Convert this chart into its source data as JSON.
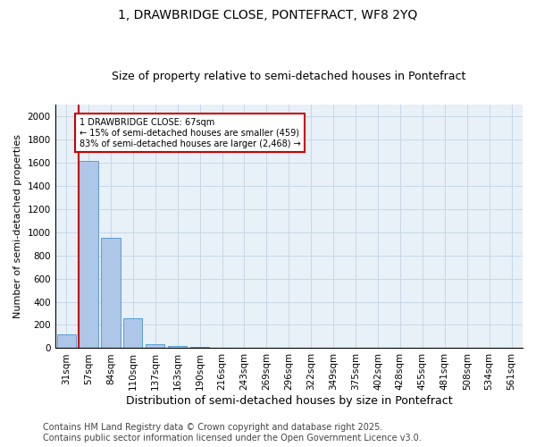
{
  "title1": "1, DRAWBRIDGE CLOSE, PONTEFRACT, WF8 2YQ",
  "title2": "Size of property relative to semi-detached houses in Pontefract",
  "xlabel": "Distribution of semi-detached houses by size in Pontefract",
  "ylabel": "Number of semi-detached properties",
  "bar_color": "#aec6e8",
  "bar_edge_color": "#5a9fd4",
  "categories": [
    "31sqm",
    "57sqm",
    "84sqm",
    "110sqm",
    "137sqm",
    "163sqm",
    "190sqm",
    "216sqm",
    "243sqm",
    "269sqm",
    "296sqm",
    "322sqm",
    "349sqm",
    "375sqm",
    "402sqm",
    "428sqm",
    "455sqm",
    "481sqm",
    "508sqm",
    "534sqm",
    "561sqm"
  ],
  "values": [
    120,
    1610,
    950,
    260,
    37,
    20,
    10,
    0,
    0,
    0,
    0,
    0,
    0,
    0,
    0,
    0,
    0,
    0,
    0,
    0,
    0
  ],
  "ylim": [
    0,
    2100
  ],
  "yticks": [
    0,
    200,
    400,
    600,
    800,
    1000,
    1200,
    1400,
    1600,
    1800,
    2000
  ],
  "red_line_x": 0.57,
  "annotation_title": "1 DRAWBRIDGE CLOSE: 67sqm",
  "annotation_line1": "← 15% of semi-detached houses are smaller (459)",
  "annotation_line2": "83% of semi-detached houses are larger (2,468) →",
  "annotation_box_color": "#ffffff",
  "annotation_box_edge": "#cc0000",
  "red_line_color": "#cc0000",
  "grid_color": "#c8d8e8",
  "bg_color": "#e8f0f8",
  "footer1": "Contains HM Land Registry data © Crown copyright and database right 2025.",
  "footer2": "Contains public sector information licensed under the Open Government Licence v3.0.",
  "title1_fontsize": 10,
  "title2_fontsize": 9,
  "xlabel_fontsize": 9,
  "ylabel_fontsize": 8,
  "tick_fontsize": 7.5,
  "footer_fontsize": 7
}
